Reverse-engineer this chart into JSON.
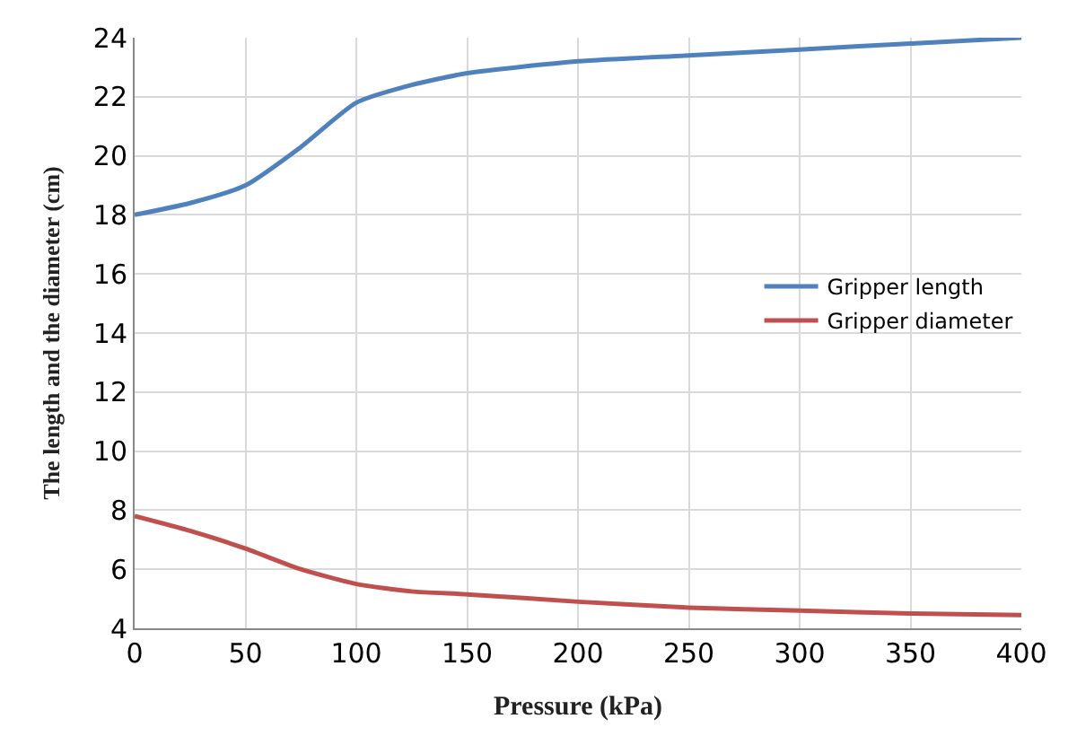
{
  "chart_data": {
    "type": "line",
    "xlabel": "Pressure (kPa)",
    "ylabel": "The length and the diameter (cm)",
    "x": [
      0,
      25,
      50,
      75,
      100,
      125,
      150,
      200,
      250,
      300,
      350,
      400
    ],
    "series": [
      {
        "name": "Gripper length",
        "color": "#4f81bd",
        "values": [
          18,
          18.4,
          19,
          20.3,
          21.8,
          22.4,
          22.8,
          23.2,
          23.4,
          23.6,
          23.8,
          24
        ]
      },
      {
        "name": "Gripper diameter",
        "color": "#c0504d",
        "values": [
          7.8,
          7.3,
          6.7,
          6.0,
          5.5,
          5.25,
          5.15,
          4.9,
          4.7,
          4.6,
          4.5,
          4.45
        ]
      }
    ],
    "xlim": [
      0,
      400
    ],
    "xticks": [
      0,
      50,
      100,
      150,
      200,
      250,
      300,
      350,
      400
    ],
    "ylim": [
      4,
      24
    ],
    "yticks": [
      4,
      6,
      8,
      10,
      12,
      14,
      16,
      18,
      20,
      22,
      24
    ],
    "grid": true,
    "legend": "right",
    "marker": "none",
    "line_style": "solid"
  }
}
